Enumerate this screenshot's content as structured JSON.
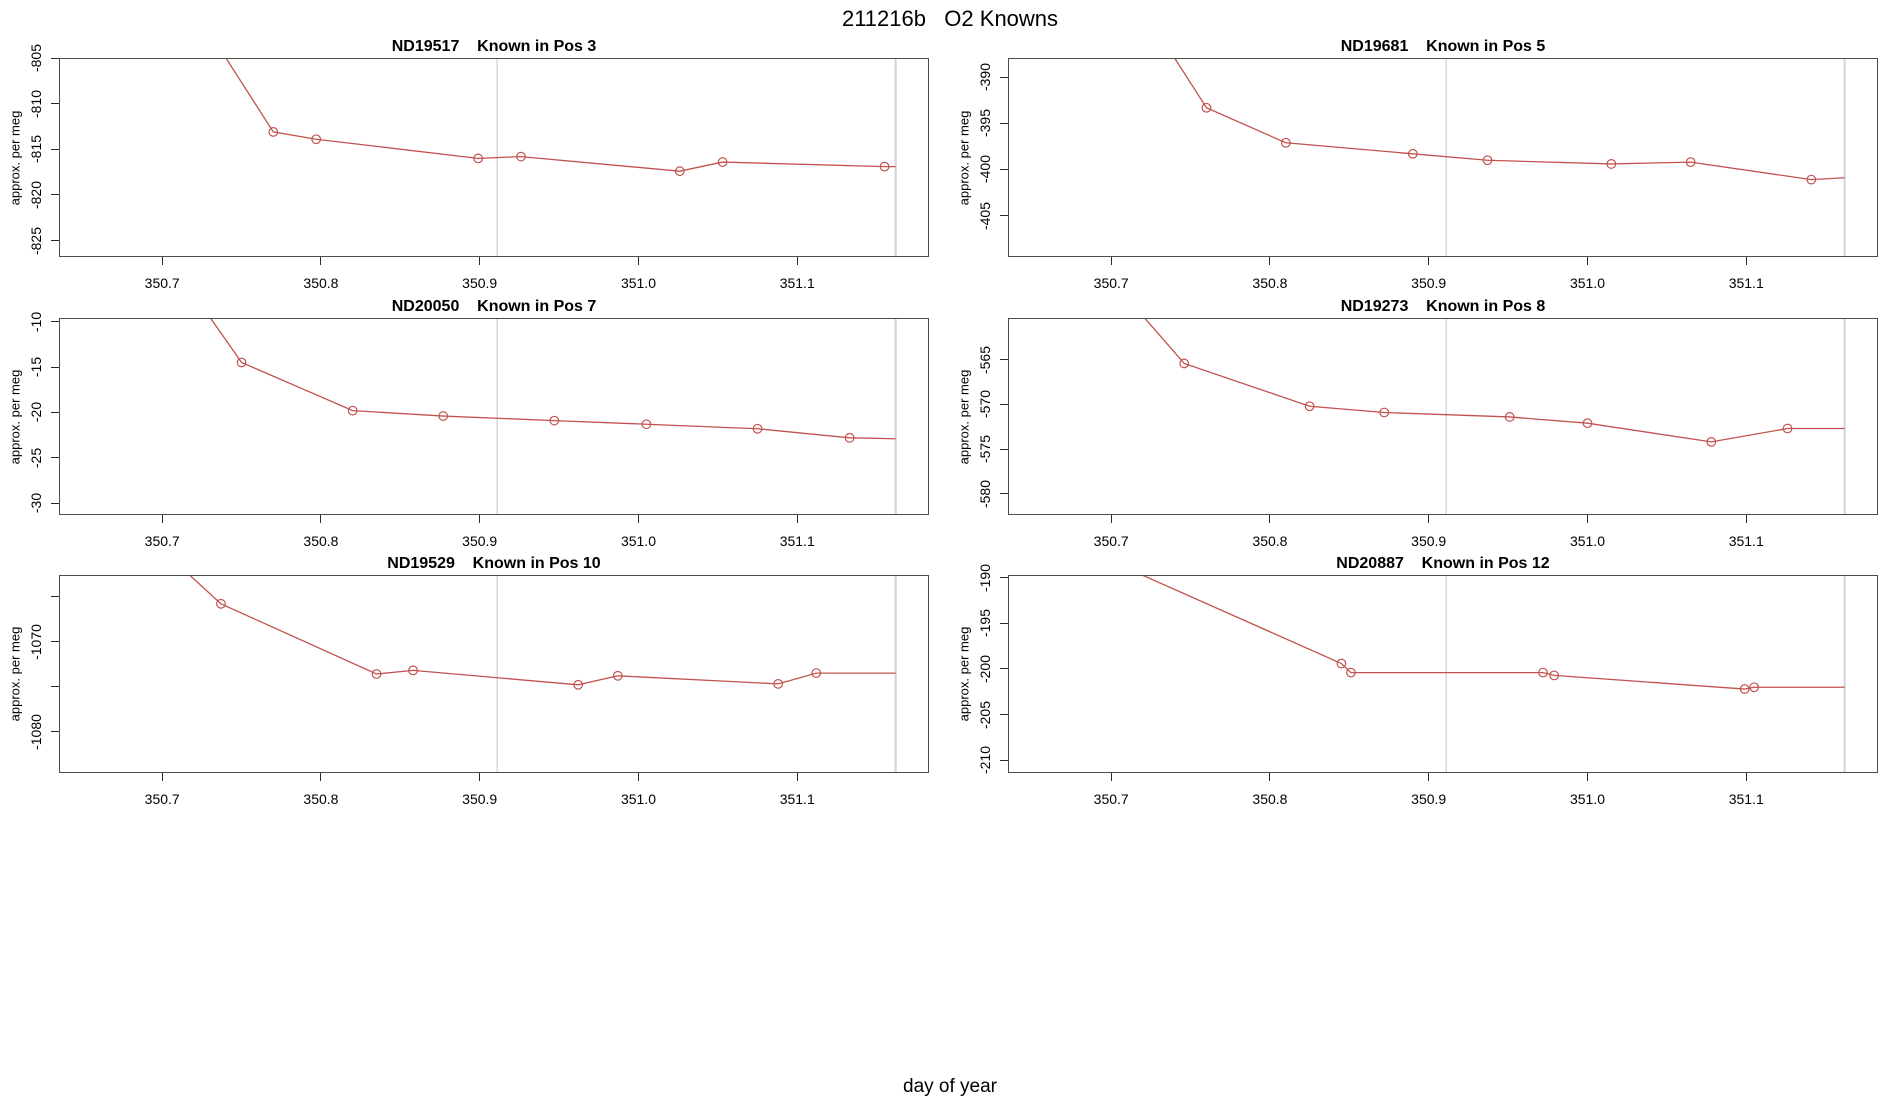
{
  "figure": {
    "title": "211216b   O2 Knowns",
    "xlabel": "day of year"
  },
  "colors": {
    "series": "#c2524f",
    "marker": "#c2524f",
    "vline": "#d6d6d6",
    "box": "#4d4d4d",
    "tick": "#2b2b2b",
    "text": "#000000",
    "background": "#ffffff"
  },
  "chart_data": [
    {
      "type": "line",
      "id": "ND19517",
      "position_label": "Known in Pos 3",
      "title": "ND19517    Known in Pos 3",
      "ylabel": "approx. per meg",
      "grid": "off",
      "marker": "open-circle",
      "xlim": [
        350.635,
        351.183
      ],
      "ylim": [
        -826.8,
        -805.0
      ],
      "xticks": [
        {
          "v": 350.7,
          "l": "350.7"
        },
        {
          "v": 350.8,
          "l": "350.8"
        },
        {
          "v": 350.9,
          "l": "350.9"
        },
        {
          "v": 351.0,
          "l": "351.0"
        },
        {
          "v": 351.1,
          "l": "351.1"
        }
      ],
      "yticks": [
        {
          "v": -825,
          "l": "-825"
        },
        {
          "v": -820,
          "l": "-820"
        },
        {
          "v": -815,
          "l": "-815"
        },
        {
          "v": -810,
          "l": "-810"
        },
        {
          "v": -805,
          "l": "-805"
        }
      ],
      "vlines": [
        350.911,
        351.162
      ],
      "pre_point": [
        350.718,
        -799.0
      ],
      "points": [
        [
          350.77,
          -813.1
        ],
        [
          350.797,
          -813.9
        ],
        [
          350.899,
          -816.0
        ],
        [
          350.926,
          -815.8
        ],
        [
          351.026,
          -817.4
        ],
        [
          351.053,
          -816.4
        ],
        [
          351.155,
          -816.9
        ]
      ],
      "end_point": [
        351.162,
        -816.9
      ]
    },
    {
      "type": "line",
      "id": "ND19681",
      "position_label": "Known in Pos 5",
      "title": "ND19681    Known in Pos 5",
      "ylabel": "approx. per meg",
      "grid": "off",
      "marker": "open-circle",
      "xlim": [
        350.635,
        351.183
      ],
      "ylim": [
        -409.5,
        -387.9
      ],
      "xticks": [
        {
          "v": 350.7,
          "l": "350.7"
        },
        {
          "v": 350.8,
          "l": "350.8"
        },
        {
          "v": 350.9,
          "l": "350.9"
        },
        {
          "v": 351.0,
          "l": "351.0"
        },
        {
          "v": 351.1,
          "l": "351.1"
        }
      ],
      "yticks": [
        {
          "v": -405,
          "l": "-405"
        },
        {
          "v": -400,
          "l": "-400"
        },
        {
          "v": -395,
          "l": "-395"
        },
        {
          "v": -390,
          "l": "-390"
        }
      ],
      "vlines": [
        350.911,
        351.162
      ],
      "pre_point": [
        350.718,
        -382.0
      ],
      "points": [
        [
          350.76,
          -393.3
        ],
        [
          350.81,
          -397.1
        ],
        [
          350.89,
          -398.3
        ],
        [
          350.937,
          -399.0
        ],
        [
          351.015,
          -399.4
        ],
        [
          351.065,
          -399.2
        ],
        [
          351.141,
          -401.1
        ]
      ],
      "end_point": [
        351.162,
        -400.9
      ]
    },
    {
      "type": "line",
      "id": "ND20050",
      "position_label": "Known in Pos 7",
      "title": "ND20050    Known in Pos 7",
      "ylabel": "approx. per meg",
      "grid": "off",
      "marker": "open-circle",
      "xlim": [
        350.635,
        351.183
      ],
      "ylim": [
        -31.3,
        -9.6
      ],
      "xticks": [
        {
          "v": 350.7,
          "l": "350.7"
        },
        {
          "v": 350.8,
          "l": "350.8"
        },
        {
          "v": 350.9,
          "l": "350.9"
        },
        {
          "v": 351.0,
          "l": "351.0"
        },
        {
          "v": 351.1,
          "l": "351.1"
        }
      ],
      "yticks": [
        {
          "v": -30,
          "l": "-30"
        },
        {
          "v": -25,
          "l": "-25"
        },
        {
          "v": -20,
          "l": "-20"
        },
        {
          "v": -15,
          "l": "-15"
        },
        {
          "v": -10,
          "l": "-10"
        }
      ],
      "vlines": [
        350.911,
        351.162
      ],
      "pre_point": [
        350.71,
        -4.5
      ],
      "points": [
        [
          350.75,
          -14.5
        ],
        [
          350.82,
          -19.8
        ],
        [
          350.877,
          -20.4
        ],
        [
          350.947,
          -20.9
        ],
        [
          351.005,
          -21.3
        ],
        [
          351.075,
          -21.8
        ],
        [
          351.133,
          -22.8
        ]
      ],
      "end_point": [
        351.162,
        -22.9
      ]
    },
    {
      "type": "line",
      "id": "ND19273",
      "position_label": "Known in Pos 8",
      "title": "ND19273    Known in Pos 8",
      "ylabel": "approx. per meg",
      "grid": "off",
      "marker": "open-circle",
      "xlim": [
        350.635,
        351.183
      ],
      "ylim": [
        -582.4,
        -560.3
      ],
      "xticks": [
        {
          "v": 350.7,
          "l": "350.7"
        },
        {
          "v": 350.8,
          "l": "350.8"
        },
        {
          "v": 350.9,
          "l": "350.9"
        },
        {
          "v": 351.0,
          "l": "351.0"
        },
        {
          "v": 351.1,
          "l": "351.1"
        }
      ],
      "yticks": [
        {
          "v": -580,
          "l": "-580"
        },
        {
          "v": -575,
          "l": "-575"
        },
        {
          "v": -570,
          "l": "-570"
        },
        {
          "v": -565,
          "l": "-565"
        }
      ],
      "vlines": [
        350.911,
        351.162
      ],
      "pre_point": [
        350.7,
        -556.0
      ],
      "points": [
        [
          350.746,
          -565.4
        ],
        [
          350.825,
          -570.2
        ],
        [
          350.872,
          -570.9
        ],
        [
          350.951,
          -571.4
        ],
        [
          351.0,
          -572.1
        ],
        [
          351.078,
          -574.2
        ],
        [
          351.126,
          -572.7
        ]
      ],
      "end_point": [
        351.162,
        -572.7
      ]
    },
    {
      "type": "line",
      "id": "ND19529",
      "position_label": "Known in Pos 10",
      "title": "ND19529    Known in Pos 10",
      "ylabel": "approx. per meg",
      "grid": "off",
      "marker": "open-circle",
      "xlim": [
        350.635,
        351.183
      ],
      "ylim": [
        -1084.6,
        -1062.6
      ],
      "xticks": [
        {
          "v": 350.7,
          "l": "350.7"
        },
        {
          "v": 350.8,
          "l": "350.8"
        },
        {
          "v": 350.9,
          "l": "350.9"
        },
        {
          "v": 351.0,
          "l": "351.0"
        },
        {
          "v": 351.1,
          "l": "351.1"
        }
      ],
      "yticks": [
        {
          "v": -1080,
          "l": "-1080"
        },
        {
          "v": -1075,
          "l": ""
        },
        {
          "v": -1070,
          "l": "-1070"
        },
        {
          "v": -1065,
          "l": ""
        }
      ],
      "vlines": [
        350.911,
        351.162
      ],
      "pre_point": [
        350.7,
        -1059.8
      ],
      "points": [
        [
          350.737,
          -1065.8
        ],
        [
          350.835,
          -1073.6
        ],
        [
          350.858,
          -1073.2
        ],
        [
          350.962,
          -1074.8
        ],
        [
          350.987,
          -1073.8
        ],
        [
          351.088,
          -1074.7
        ],
        [
          351.112,
          -1073.5
        ]
      ],
      "end_point": [
        351.162,
        -1073.5
      ]
    },
    {
      "type": "line",
      "id": "ND20887",
      "position_label": "Known in Pos 12",
      "title": "ND20887    Known in Pos 12",
      "ylabel": "approx. per meg",
      "grid": "off",
      "marker": "open-circle",
      "xlim": [
        350.635,
        351.183
      ],
      "ylim": [
        -211.4,
        -189.7
      ],
      "xticks": [
        {
          "v": 350.7,
          "l": "350.7"
        },
        {
          "v": 350.8,
          "l": "350.8"
        },
        {
          "v": 350.9,
          "l": "350.9"
        },
        {
          "v": 351.0,
          "l": "351.0"
        },
        {
          "v": 351.1,
          "l": "351.1"
        }
      ],
      "yticks": [
        {
          "v": -210,
          "l": "-210"
        },
        {
          "v": -205,
          "l": "-205"
        },
        {
          "v": -200,
          "l": "-200"
        },
        {
          "v": -195,
          "l": "-195"
        },
        {
          "v": -190,
          "l": "-190"
        }
      ],
      "vlines": [
        350.911,
        351.162
      ],
      "pre_point": [
        350.7,
        -188.2
      ],
      "points": [
        [
          350.845,
          -199.4
        ],
        [
          350.851,
          -200.4
        ],
        [
          350.972,
          -200.4
        ],
        [
          350.979,
          -200.7
        ],
        [
          351.099,
          -202.2
        ],
        [
          351.105,
          -202.0
        ]
      ],
      "end_point": [
        351.162,
        -202.0
      ]
    }
  ]
}
